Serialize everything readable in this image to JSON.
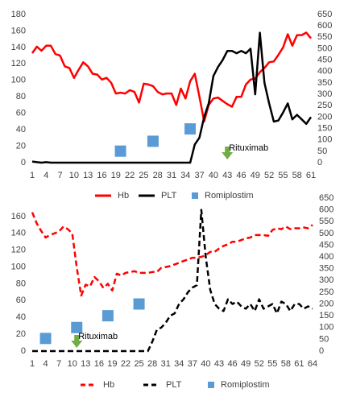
{
  "chart_data": [
    {
      "type": "line",
      "x": [
        1,
        2,
        3,
        4,
        5,
        6,
        7,
        8,
        9,
        10,
        11,
        12,
        13,
        14,
        15,
        16,
        17,
        18,
        19,
        20,
        21,
        22,
        23,
        24,
        25,
        26,
        27,
        28,
        29,
        30,
        31,
        32,
        33,
        34,
        35,
        36,
        37,
        38,
        39,
        40,
        41,
        42,
        43,
        44,
        45,
        46,
        47,
        48,
        49,
        50,
        51,
        52,
        53,
        54,
        55,
        56,
        57,
        58,
        59,
        60,
        61
      ],
      "xlim": [
        1,
        61
      ],
      "xticks": [
        1,
        4,
        7,
        10,
        13,
        16,
        19,
        22,
        25,
        28,
        31,
        34,
        37,
        40,
        43,
        46,
        49,
        52,
        55,
        58,
        61
      ],
      "ylim": [
        0,
        180
      ],
      "yticks": [
        0,
        20,
        40,
        60,
        80,
        100,
        120,
        140,
        160,
        180
      ],
      "y2lim": [
        0,
        650
      ],
      "y2ticks": [
        0,
        50,
        100,
        150,
        200,
        250,
        300,
        350,
        400,
        450,
        500,
        550,
        600,
        650
      ],
      "series": [
        {
          "name": "Hb",
          "color": "#ff0000",
          "line_style": "solid",
          "values": [
            133,
            141,
            136,
            142,
            142,
            132,
            130,
            117,
            115,
            103,
            113,
            122,
            117,
            108,
            107,
            101,
            103,
            97,
            84,
            85,
            84,
            88,
            86,
            73,
            96,
            95,
            93,
            86,
            83,
            84,
            84,
            70,
            90,
            78,
            99,
            108,
            80,
            50,
            70,
            78,
            79,
            75,
            71,
            68,
            80,
            80,
            95,
            101,
            102,
            110,
            115,
            122,
            123,
            131,
            140,
            156,
            142,
            155,
            155,
            158,
            151
          ]
        },
        {
          "name": "PLT",
          "color": "#000000",
          "line_style": "solid",
          "axis": "y2",
          "values": [
            5,
            2,
            0,
            2,
            0,
            0,
            0,
            0,
            0,
            0,
            0,
            0,
            0,
            0,
            0,
            0,
            0,
            0,
            0,
            0,
            0,
            0,
            0,
            0,
            0,
            0,
            0,
            0,
            0,
            0,
            0,
            0,
            0,
            0,
            0,
            80,
            110,
            200,
            260,
            380,
            420,
            450,
            490,
            490,
            480,
            490,
            480,
            500,
            300,
            570,
            350,
            260,
            180,
            185,
            220,
            260,
            190,
            210,
            190,
            170,
            200
          ]
        },
        {
          "name": "Romiplostim",
          "color": "#5b9bd5",
          "marker": "square",
          "x": [
            20,
            27,
            35
          ],
          "values": [
            14,
            26,
            41
          ]
        }
      ],
      "annotations": [
        {
          "text": "Rituximab",
          "x": 43
        }
      ],
      "legend": "bottom"
    },
    {
      "type": "line",
      "x": [
        1,
        2,
        3,
        4,
        5,
        6,
        7,
        8,
        9,
        10,
        11,
        12,
        13,
        14,
        15,
        16,
        17,
        18,
        19,
        20,
        21,
        22,
        23,
        24,
        25,
        26,
        27,
        28,
        29,
        30,
        31,
        32,
        33,
        34,
        35,
        36,
        37,
        38,
        39,
        40,
        41,
        42,
        43,
        44,
        45,
        46,
        47,
        48,
        49,
        50,
        51,
        52,
        53,
        54,
        55,
        56,
        57,
        58,
        59,
        60,
        61,
        62,
        63,
        64
      ],
      "xlim": [
        1,
        64
      ],
      "xticks": [
        1,
        4,
        7,
        10,
        13,
        16,
        19,
        22,
        25,
        28,
        31,
        34,
        37,
        40,
        43,
        46,
        49,
        52,
        55,
        58,
        61,
        64
      ],
      "ylim": [
        0,
        180
      ],
      "yticks": [
        0,
        20,
        40,
        60,
        80,
        100,
        120,
        140,
        160
      ],
      "y2lim": [
        0,
        650
      ],
      "y2ticks": [
        0,
        50,
        100,
        150,
        200,
        250,
        300,
        350,
        400,
        450,
        500,
        550,
        600,
        650
      ],
      "series": [
        {
          "name": "Hb",
          "color": "#ff0000",
          "line_style": "dashed",
          "values": [
            165,
            152,
            143,
            135,
            138,
            140,
            142,
            148,
            145,
            140,
            100,
            66,
            79,
            77,
            88,
            83,
            75,
            80,
            72,
            92,
            90,
            93,
            94,
            95,
            93,
            93,
            93,
            94,
            94,
            99,
            100,
            101,
            103,
            105,
            107,
            109,
            111,
            111,
            112,
            114,
            118,
            118,
            122,
            125,
            127,
            130,
            130,
            132,
            134,
            135,
            138,
            138,
            138,
            137,
            144,
            146,
            145,
            148,
            145,
            146,
            146,
            147,
            146,
            150
          ]
        },
        {
          "name": "PLT",
          "color": "#000000",
          "line_style": "dashed",
          "axis": "y2",
          "values": [
            0,
            0,
            0,
            0,
            0,
            0,
            0,
            0,
            0,
            0,
            0,
            0,
            0,
            0,
            0,
            0,
            0,
            0,
            0,
            0,
            0,
            0,
            0,
            0,
            0,
            0,
            0,
            40,
            90,
            100,
            120,
            150,
            160,
            200,
            220,
            250,
            270,
            280,
            600,
            400,
            260,
            200,
            180,
            170,
            220,
            200,
            210,
            190,
            180,
            200,
            170,
            220,
            180,
            190,
            200,
            160,
            210,
            200,
            170,
            200,
            200,
            180,
            190,
            180
          ]
        },
        {
          "name": "Romiplostim",
          "color": "#5b9bd5",
          "marker": "square",
          "x": [
            4,
            11,
            18,
            25
          ],
          "values": [
            15,
            28,
            42,
            56
          ]
        }
      ],
      "annotations": [
        {
          "text": "Rituximab",
          "x": 11
        }
      ],
      "legend": "bottom"
    }
  ]
}
